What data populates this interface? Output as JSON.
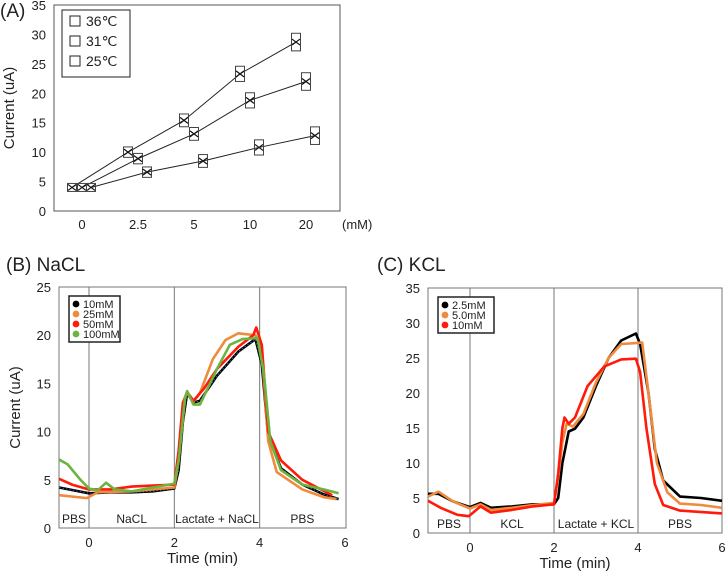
{
  "chart_data": [
    {
      "id": "A",
      "type": "line",
      "title": "(A)",
      "xlabel": "",
      "x_unit": "(mM)",
      "ylabel": "Current (uA)",
      "categories": [
        "0",
        "2.5",
        "5",
        "10",
        "20"
      ],
      "ylim": [
        0,
        35
      ],
      "yticks": [
        0,
        5,
        10,
        15,
        20,
        25,
        30,
        35
      ],
      "legend_position": "top-left",
      "series": [
        {
          "name": "36℃",
          "values": [
            4,
            10,
            15.4,
            23.3,
            28.7
          ]
        },
        {
          "name": "31℃",
          "values": [
            4,
            8.9,
            13.1,
            18.8,
            22
          ]
        },
        {
          "name": "25℃",
          "values": [
            4,
            6.6,
            8.5,
            10.8,
            12.8
          ]
        }
      ]
    },
    {
      "id": "B",
      "type": "line",
      "title": "(B) NaCL",
      "xlabel": "Time (min)",
      "ylabel": "Current (uA)",
      "xlim": [
        -0.7,
        6
      ],
      "ylim": [
        0,
        25
      ],
      "xticks": [
        0,
        2,
        4,
        6
      ],
      "yticks": [
        0,
        5,
        10,
        15,
        20,
        25
      ],
      "phase_lines": [
        0,
        2,
        4
      ],
      "phases": [
        {
          "label": "PBS",
          "at": -0.35
        },
        {
          "label": "NaCL",
          "at": 1
        },
        {
          "label": "Lactate + NaCL",
          "at": 3
        },
        {
          "label": "PBS",
          "at": 5
        }
      ],
      "legend_position": "top-left",
      "series": [
        {
          "name": "10mM",
          "color": "#000000",
          "x": [
            -0.7,
            0,
            0.5,
            1,
            1.5,
            2,
            2.1,
            2.2,
            2.3,
            2.45,
            2.6,
            3,
            3.5,
            3.9,
            4.05,
            4.2,
            4.5,
            5,
            5.5,
            5.85
          ],
          "y": [
            4.2,
            3.6,
            3.7,
            3.7,
            3.8,
            4.1,
            6,
            11,
            14,
            13,
            13.2,
            15.8,
            18.3,
            19.6,
            17,
            9.5,
            6.2,
            4.5,
            3.5,
            3
          ]
        },
        {
          "name": "25mM",
          "color": "#f08a3c",
          "x": [
            -0.7,
            -0.05,
            0.2,
            1,
            2,
            2.1,
            2.25,
            2.3,
            2.45,
            2.6,
            2.9,
            3.2,
            3.5,
            3.9,
            4.05,
            4.2,
            4.4,
            5,
            5.5,
            5.8
          ],
          "y": [
            3.4,
            3.1,
            3.7,
            3.8,
            4.2,
            7,
            13.5,
            14,
            13.1,
            14,
            17.5,
            19.5,
            20.2,
            20,
            18.5,
            9,
            5.8,
            4,
            3.2,
            3
          ]
        },
        {
          "name": "50mM",
          "color": "#ff1a0a",
          "x": [
            -0.7,
            -0.4,
            0,
            0.5,
            1,
            1.5,
            2,
            2.1,
            2.2,
            2.3,
            2.45,
            2.7,
            3,
            3.5,
            3.85,
            3.92,
            4.05,
            4.2,
            4.5,
            5,
            5.7
          ],
          "y": [
            5.1,
            4.5,
            4,
            4,
            4.3,
            4.4,
            4.5,
            8,
            13,
            14.1,
            13.2,
            14.5,
            16.5,
            18.8,
            20,
            20.8,
            19,
            10,
            7,
            5,
            3.4
          ]
        },
        {
          "name": "100mM",
          "color": "#6db33f",
          "x": [
            -0.7,
            -0.5,
            -0.2,
            0,
            0.2,
            0.4,
            0.6,
            1,
            1.5,
            2,
            2.1,
            2.25,
            2.3,
            2.45,
            2.6,
            3,
            3.3,
            3.6,
            3.95,
            4.1,
            4.25,
            4.5,
            5,
            5.5,
            5.85
          ],
          "y": [
            7.1,
            6.6,
            5,
            4.1,
            3.9,
            4.7,
            4,
            3.8,
            4.2,
            4.6,
            7,
            13.5,
            14.2,
            12.8,
            12.8,
            16.5,
            19,
            19.6,
            19.7,
            16,
            9,
            6,
            4.5,
            4,
            3.6
          ]
        }
      ]
    },
    {
      "id": "C",
      "type": "line",
      "title": "(C) KCL",
      "xlabel": "Time (min)",
      "ylabel": "",
      "xlim": [
        -1,
        6
      ],
      "ylim": [
        0,
        35
      ],
      "xticks": [
        0,
        2,
        4,
        6
      ],
      "yticks": [
        0,
        5,
        10,
        15,
        20,
        25,
        30,
        35
      ],
      "phase_lines": [
        0,
        2,
        4
      ],
      "phases": [
        {
          "label": "PBS",
          "at": -0.5
        },
        {
          "label": "KCL",
          "at": 1
        },
        {
          "label": "Lactate + KCL",
          "at": 3
        },
        {
          "label": "PBS",
          "at": 5
        }
      ],
      "legend_position": "top-left",
      "series": [
        {
          "name": "2.5mM",
          "color": "#000000",
          "x": [
            -1,
            -0.75,
            -0.4,
            0,
            0.25,
            0.5,
            1,
            1.5,
            2,
            2.1,
            2.2,
            2.35,
            2.5,
            2.7,
            3,
            3.3,
            3.6,
            3.95,
            4.05,
            4.25,
            4.4,
            4.6,
            5,
            5.5,
            6
          ],
          "y": [
            5.6,
            5.6,
            4.5,
            3.7,
            4.3,
            3.6,
            3.8,
            4.1,
            4.1,
            5,
            10,
            14.5,
            14.9,
            16.5,
            21,
            25,
            27.5,
            28.5,
            27,
            20,
            12,
            7.5,
            5.2,
            5,
            4.6
          ]
        },
        {
          "name": "5.0mM",
          "color": "#f08a3c",
          "x": [
            -1,
            -0.75,
            -0.4,
            0,
            0.25,
            0.5,
            1,
            1.5,
            2,
            2.1,
            2.2,
            2.3,
            2.45,
            2.7,
            3,
            3.3,
            3.6,
            4.1,
            4.25,
            4.45,
            4.7,
            5,
            5.5,
            6
          ],
          "y": [
            5.2,
            5.9,
            4.5,
            3.5,
            4.1,
            3.3,
            3.6,
            4,
            4.3,
            8,
            13,
            15.6,
            15.2,
            17,
            21.5,
            25,
            27,
            27.2,
            20,
            10,
            5.8,
            4.2,
            4,
            3.6
          ]
        },
        {
          "name": "10mM",
          "color": "#ff1a0a",
          "x": [
            -1,
            -0.7,
            -0.3,
            -0.03,
            0.25,
            0.5,
            1,
            1.5,
            2,
            2.1,
            2.2,
            2.25,
            2.35,
            2.5,
            2.8,
            3.2,
            3.6,
            3.95,
            4.05,
            4.2,
            4.4,
            4.6,
            5,
            6
          ],
          "y": [
            4.6,
            3.6,
            2.6,
            2.4,
            3.8,
            2.9,
            3.3,
            3.8,
            4.1,
            8.5,
            15,
            16.5,
            15.6,
            16.5,
            21,
            23.8,
            24.8,
            24.9,
            23,
            15,
            7,
            4,
            3.2,
            2.8
          ]
        }
      ]
    }
  ]
}
